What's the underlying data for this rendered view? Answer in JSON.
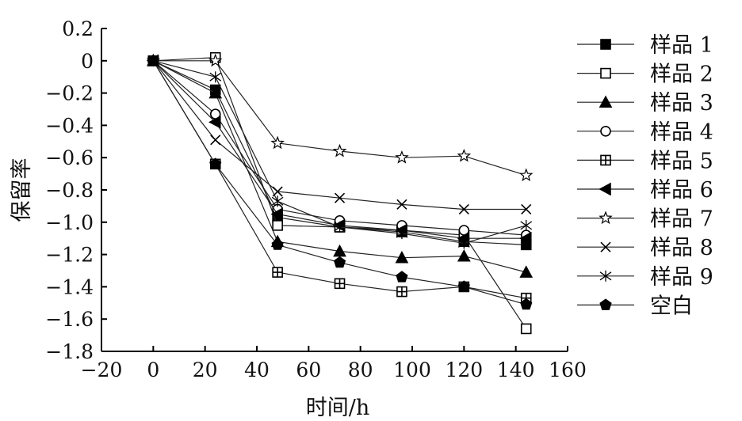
{
  "chart_data": {
    "type": "line",
    "xlabel": "时间/h",
    "ylabel": "保留率",
    "xlim": [
      -20,
      160
    ],
    "ylim": [
      -1.8,
      0.2
    ],
    "xticks": [
      -20,
      0,
      20,
      40,
      60,
      80,
      100,
      120,
      140,
      160
    ],
    "yticks": [
      0.2,
      0,
      -0.2,
      -0.4,
      -0.6,
      -0.8,
      -1.0,
      -1.2,
      -1.4,
      -1.6,
      -1.8
    ],
    "ytick_labels": [
      "0.2",
      "0",
      "−0.2",
      "−0.4",
      "−0.6",
      "−0.8",
      "−1.0",
      "−1.2",
      "−1.4",
      "−1.6",
      "−1.8"
    ],
    "xtick_labels": [
      "−20",
      "0",
      "20",
      "40",
      "60",
      "80",
      "100",
      "120",
      "140",
      "160"
    ],
    "grid": false,
    "legend_position": "right",
    "x": [
      0,
      24,
      48,
      72,
      96,
      120,
      144
    ],
    "series": [
      {
        "name": "样品 1",
        "marker": "square-filled",
        "values": [
          0,
          -0.18,
          -0.97,
          -1.03,
          -1.06,
          -1.12,
          -1.14
        ]
      },
      {
        "name": "样品 2",
        "marker": "square-open",
        "values": [
          0,
          0.02,
          -1.02,
          -1.03,
          -1.05,
          -1.08,
          -1.66
        ]
      },
      {
        "name": "样品 3",
        "marker": "triangle-filled",
        "values": [
          0,
          -0.2,
          -1.12,
          -1.18,
          -1.22,
          -1.21,
          -1.31
        ]
      },
      {
        "name": "样品 4",
        "marker": "circle-open",
        "values": [
          0,
          -0.33,
          -0.92,
          -0.99,
          -1.02,
          -1.05,
          -1.08
        ]
      },
      {
        "name": "样品 5",
        "marker": "square-plus",
        "values": [
          0,
          -0.64,
          -1.31,
          -1.38,
          -1.43,
          -1.4,
          -1.47
        ]
      },
      {
        "name": "样品 6",
        "marker": "triangle-left-filled",
        "values": [
          0,
          -0.38,
          -0.95,
          -1.02,
          -1.05,
          -1.1,
          -1.1
        ]
      },
      {
        "name": "样品 7",
        "marker": "star-open",
        "values": [
          0,
          0,
          -0.51,
          -0.56,
          -0.6,
          -0.59,
          -0.71
        ]
      },
      {
        "name": "样品 8",
        "marker": "x",
        "values": [
          0,
          -0.49,
          -0.81,
          -0.85,
          -0.89,
          -0.92,
          -0.92
        ]
      },
      {
        "name": "样品 9",
        "marker": "asterisk",
        "values": [
          0,
          -0.1,
          -0.87,
          -1.03,
          -1.07,
          -1.13,
          -1.02
        ]
      },
      {
        "name": "空白",
        "marker": "pentagon-filled",
        "values": [
          0,
          -0.64,
          -1.14,
          -1.25,
          -1.34,
          -1.4,
          -1.51
        ]
      }
    ]
  }
}
